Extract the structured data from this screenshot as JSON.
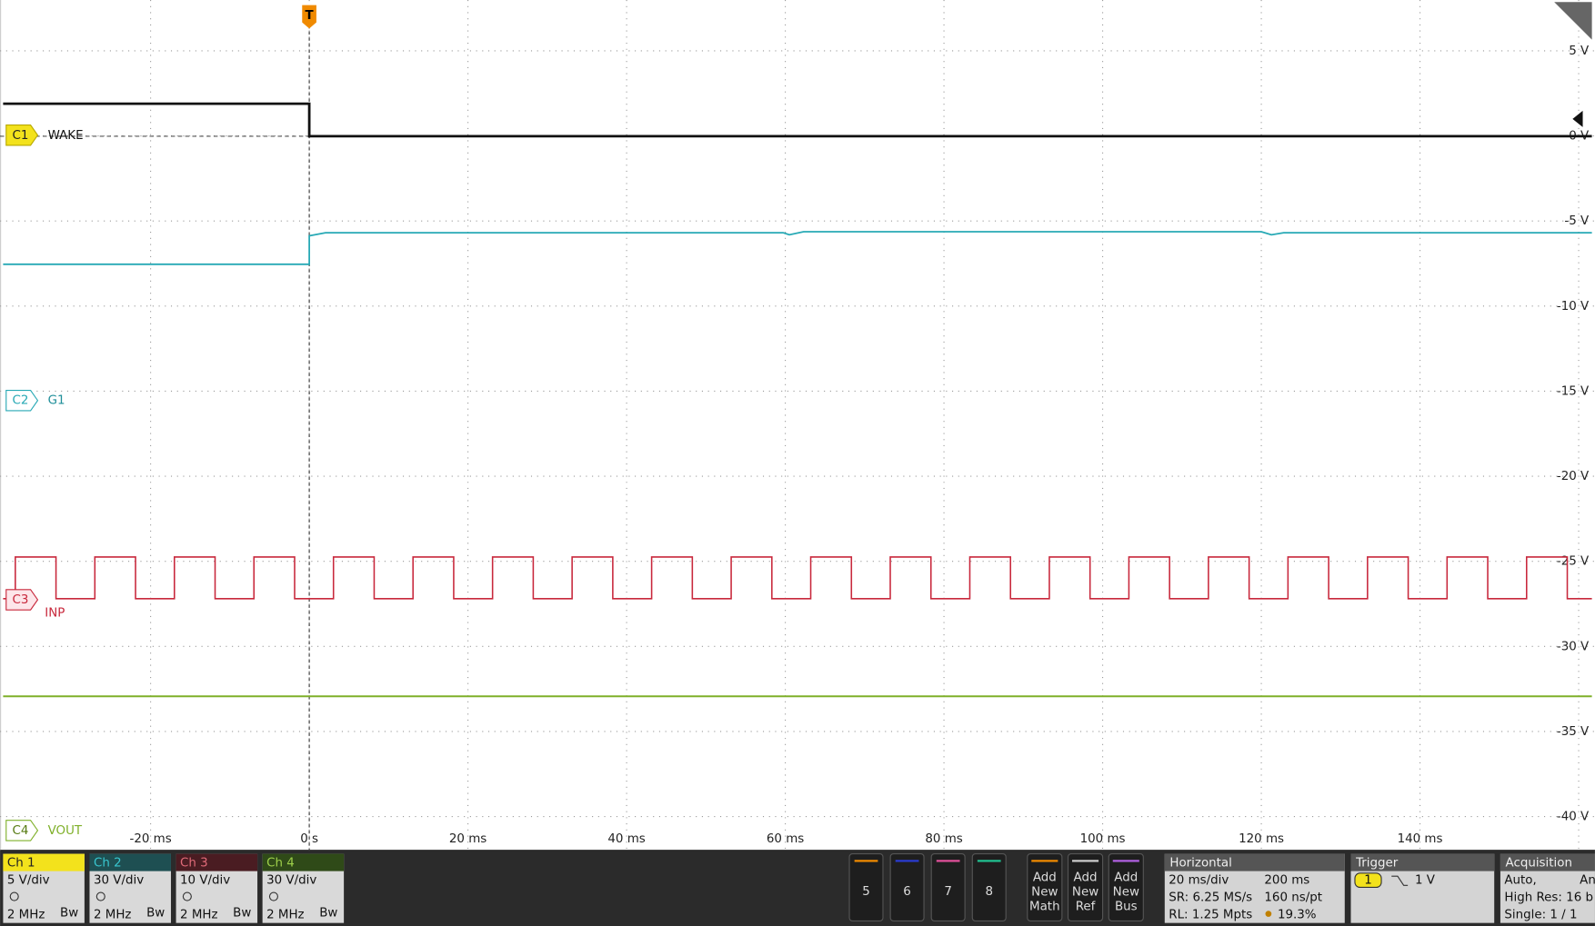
{
  "plot": {
    "trigger_marker": "T",
    "y_axis_labels": [
      "5 V",
      "0 V",
      "-5 V",
      "-10 V",
      "-15 V",
      "-20 V",
      "-25 V",
      "-30 V",
      "-35 V",
      "-40 V"
    ],
    "x_axis_labels": [
      "-20 ms",
      "0 s",
      "20 ms",
      "40 ms",
      "60 ms",
      "80 ms",
      "100 ms",
      "120 ms",
      "140 ms"
    ],
    "channel_labels": [
      {
        "badge": "C1",
        "name": "WAKE"
      },
      {
        "badge": "C2",
        "name": "G1"
      },
      {
        "badge": "C3",
        "name": "INP"
      },
      {
        "badge": "C4",
        "name": "VOUT"
      }
    ]
  },
  "channel_panels": [
    {
      "title": "Ch 1",
      "scale": "5 V/div",
      "bandwidth": "2 MHz",
      "bw": "Bw"
    },
    {
      "title": "Ch 2",
      "scale": "30 V/div",
      "bandwidth": "2 MHz",
      "bw": "Bw"
    },
    {
      "title": "Ch 3",
      "scale": "10 V/div",
      "bandwidth": "2 MHz",
      "bw": "Bw"
    },
    {
      "title": "Ch 4",
      "scale": "30 V/div",
      "bandwidth": "2 MHz",
      "bw": "Bw"
    }
  ],
  "buttons": [
    "5",
    "6",
    "7",
    "8"
  ],
  "add_buttons": [
    [
      "Add",
      "New",
      "Math"
    ],
    [
      "Add",
      "New",
      "Ref"
    ],
    [
      "Add",
      "New",
      "Bus"
    ]
  ],
  "horizontal": {
    "title": "Horizontal",
    "rows": [
      [
        "20 ms/div",
        "200 ms"
      ],
      [
        "SR: 6.25 MS/s",
        "160 ns/pt"
      ],
      [
        "RL: 1.25 Mpts",
        "19.3%"
      ]
    ]
  },
  "trigger": {
    "title": "Trigger",
    "source": "1",
    "level": "1 V"
  },
  "acquisition": {
    "title": "Acquisition",
    "lines": [
      "Auto,",
      "An",
      "High Res: 16 b",
      "Single: 1 / 1"
    ]
  }
}
